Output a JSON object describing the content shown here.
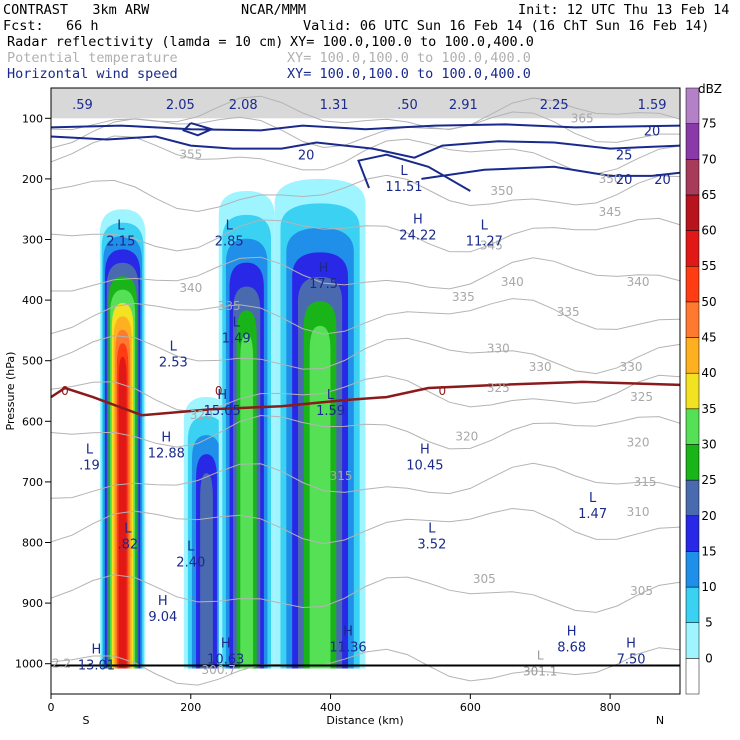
{
  "header": {
    "model": "CONTRAST   3km ARW",
    "org": "NCAR/MMM",
    "init": "Init: 12 UTC Thu 13 Feb 14",
    "fcst_label": "Fcst:",
    "fcst_value": "66 h",
    "valid": "Valid: 06 UTC Sun 16 Feb 14 (16 ChT Sun 16 Feb 14)",
    "field1": "Radar reflectivity (lamda = 10 cm)",
    "field1_xy": "XY= 100.0,100.0 to 100.0,400.0",
    "field2": "Potential temperature",
    "field2_xy": "XY= 100.0,100.0 to 100.0,400.0",
    "field3": "Horizontal wind speed",
    "field3_xy": "XY= 100.0,100.0 to 100.0,400.0"
  },
  "colors": {
    "windspeed": "#1a2a8c",
    "theta": "#b4b4b4",
    "freezing": "#8b1a1a",
    "ground": "#000000"
  },
  "chart_data": {
    "type": "heatmap",
    "title": "Radar reflectivity (lamda = 10 cm)",
    "xlabel": "Distance (km)",
    "ylabel": "Pressure (hPa)",
    "xlim": [
      0,
      900
    ],
    "ylim": [
      1050,
      50
    ],
    "x_ticks": [
      0,
      200,
      400,
      600,
      800
    ],
    "y_ticks": [
      100,
      200,
      300,
      400,
      500,
      600,
      700,
      800,
      900,
      1000
    ],
    "x_endpoints": {
      "left": "S",
      "right": "N"
    },
    "colorbar": {
      "unit": "dBZ",
      "levels": [
        0,
        5,
        10,
        15,
        20,
        25,
        30,
        35,
        40,
        45,
        50,
        55,
        60,
        65,
        70,
        75
      ],
      "colors": [
        "#ffffff",
        "#9ff5ff",
        "#3ad1f2",
        "#1f8fea",
        "#2828e6",
        "#4a6ab0",
        "#18b418",
        "#56e056",
        "#f2e222",
        "#ffb020",
        "#ff7a30",
        "#ff3c12",
        "#e01818",
        "#b8141e",
        "#a83a5a",
        "#8a3aa8",
        "#b480c8"
      ]
    },
    "reflectivity_columns": [
      {
        "x_range": [
          70,
          135
        ],
        "top_hPa": 250,
        "max_dBZ": 55
      },
      {
        "x_range": [
          190,
          255
        ],
        "top_hPa": 560,
        "max_dBZ": 20
      },
      {
        "x_range": [
          240,
          320
        ],
        "top_hPa": 220,
        "max_dBZ": 30
      },
      {
        "x_range": [
          320,
          450
        ],
        "top_hPa": 200,
        "max_dBZ": 30
      }
    ],
    "highs_lows": [
      {
        "type": "H",
        "x": 65,
        "p": 990,
        "value": "13.01"
      },
      {
        "type": "L",
        "x": 100,
        "p": 290,
        "value": "2.15"
      },
      {
        "type": "L",
        "x": 55,
        "p": 660,
        "value": ".19"
      },
      {
        "type": "L",
        "x": 110,
        "p": 790,
        "value": ".82"
      },
      {
        "type": "H",
        "x": 160,
        "p": 910,
        "value": "9.04"
      },
      {
        "type": "H",
        "x": 165,
        "p": 640,
        "value": "12.88"
      },
      {
        "type": "L",
        "x": 175,
        "p": 490,
        "value": "2.53"
      },
      {
        "type": "L",
        "x": 200,
        "p": 820,
        "value": "2.40"
      },
      {
        "type": "L",
        "x": 255,
        "p": 290,
        "value": "2.85"
      },
      {
        "type": "L",
        "x": 265,
        "p": 450,
        "value": "1.49"
      },
      {
        "type": "H",
        "x": 245,
        "p": 570,
        "value": "15.05"
      },
      {
        "type": "H",
        "x": 250,
        "p": 980,
        "value": "10.63"
      },
      {
        "type": "H",
        "x": 390,
        "p": 360,
        "value": "17.5"
      },
      {
        "type": "L",
        "x": 400,
        "p": 570,
        "value": "1.59"
      },
      {
        "type": "H",
        "x": 425,
        "p": 960,
        "value": "11.36"
      },
      {
        "type": "L",
        "x": 505,
        "p": 200,
        "value": "11.51"
      },
      {
        "type": "H",
        "x": 525,
        "p": 280,
        "value": "24.22"
      },
      {
        "type": "L",
        "x": 620,
        "p": 290,
        "value": "11.27"
      },
      {
        "type": "H",
        "x": 535,
        "p": 660,
        "value": "10.45"
      },
      {
        "type": "L",
        "x": 545,
        "p": 790,
        "value": "3.52"
      },
      {
        "type": "L",
        "x": 775,
        "p": 740,
        "value": "1.47"
      },
      {
        "type": "H",
        "x": 745,
        "p": 960,
        "value": "8.68"
      },
      {
        "type": "H",
        "x": 830,
        "p": 980,
        "value": "7.50"
      },
      {
        "type": "L",
        "x": 700,
        "p": 1000,
        "value": "301.1"
      }
    ],
    "top_values": [
      {
        "x": 45,
        "value": ".59"
      },
      {
        "x": 185,
        "value": "2.05"
      },
      {
        "x": 275,
        "value": "2.08"
      },
      {
        "x": 405,
        "value": "1.31"
      },
      {
        "x": 510,
        "value": ".50"
      },
      {
        "x": 590,
        "value": "2.91"
      },
      {
        "x": 720,
        "value": "2.25"
      },
      {
        "x": 860,
        "value": "1.59"
      }
    ],
    "theta_labels": [
      {
        "x": 200,
        "p": 160,
        "value": "355"
      },
      {
        "x": 760,
        "p": 100,
        "value": "365"
      },
      {
        "x": 800,
        "p": 200,
        "value": "350"
      },
      {
        "x": 645,
        "p": 220,
        "value": "350"
      },
      {
        "x": 800,
        "p": 255,
        "value": "345"
      },
      {
        "x": 630,
        "p": 310,
        "value": "345"
      },
      {
        "x": 200,
        "p": 380,
        "value": "340"
      },
      {
        "x": 660,
        "p": 370,
        "value": "340"
      },
      {
        "x": 840,
        "p": 370,
        "value": "340"
      },
      {
        "x": 255,
        "p": 410,
        "value": "335"
      },
      {
        "x": 590,
        "p": 395,
        "value": "335"
      },
      {
        "x": 740,
        "p": 420,
        "value": "335"
      },
      {
        "x": 640,
        "p": 480,
        "value": "330"
      },
      {
        "x": 700,
        "p": 510,
        "value": "330"
      },
      {
        "x": 830,
        "p": 510,
        "value": "330"
      },
      {
        "x": 845,
        "p": 560,
        "value": "325"
      },
      {
        "x": 640,
        "p": 545,
        "value": "325"
      },
      {
        "x": 215,
        "p": 590,
        "value": "320"
      },
      {
        "x": 595,
        "p": 625,
        "value": "320"
      },
      {
        "x": 840,
        "p": 635,
        "value": "320"
      },
      {
        "x": 415,
        "p": 690,
        "value": "315"
      },
      {
        "x": 850,
        "p": 700,
        "value": "315"
      },
      {
        "x": 840,
        "p": 750,
        "value": "310"
      },
      {
        "x": 620,
        "p": 860,
        "value": "305"
      },
      {
        "x": 845,
        "p": 880,
        "value": "305"
      },
      {
        "x": 240,
        "p": 1010,
        "value": "300.7"
      },
      {
        "x": 15,
        "p": 1000,
        "value": "2.2"
      }
    ],
    "wind_labels": [
      {
        "x": 365,
        "p": 160,
        "value": "20"
      },
      {
        "x": 860,
        "p": 120,
        "value": "20"
      },
      {
        "x": 820,
        "p": 160,
        "value": "25"
      },
      {
        "x": 820,
        "p": 200,
        "value": "20"
      },
      {
        "x": 875,
        "p": 200,
        "value": "20"
      }
    ],
    "freezing_level_label": "0",
    "freezing_level_hPa": [
      560,
      545,
      560,
      590,
      580,
      575,
      565,
      560,
      545,
      540,
      535,
      540
    ],
    "freezing_level_x": [
      0,
      20,
      60,
      130,
      230,
      330,
      420,
      480,
      540,
      640,
      760,
      900
    ]
  }
}
